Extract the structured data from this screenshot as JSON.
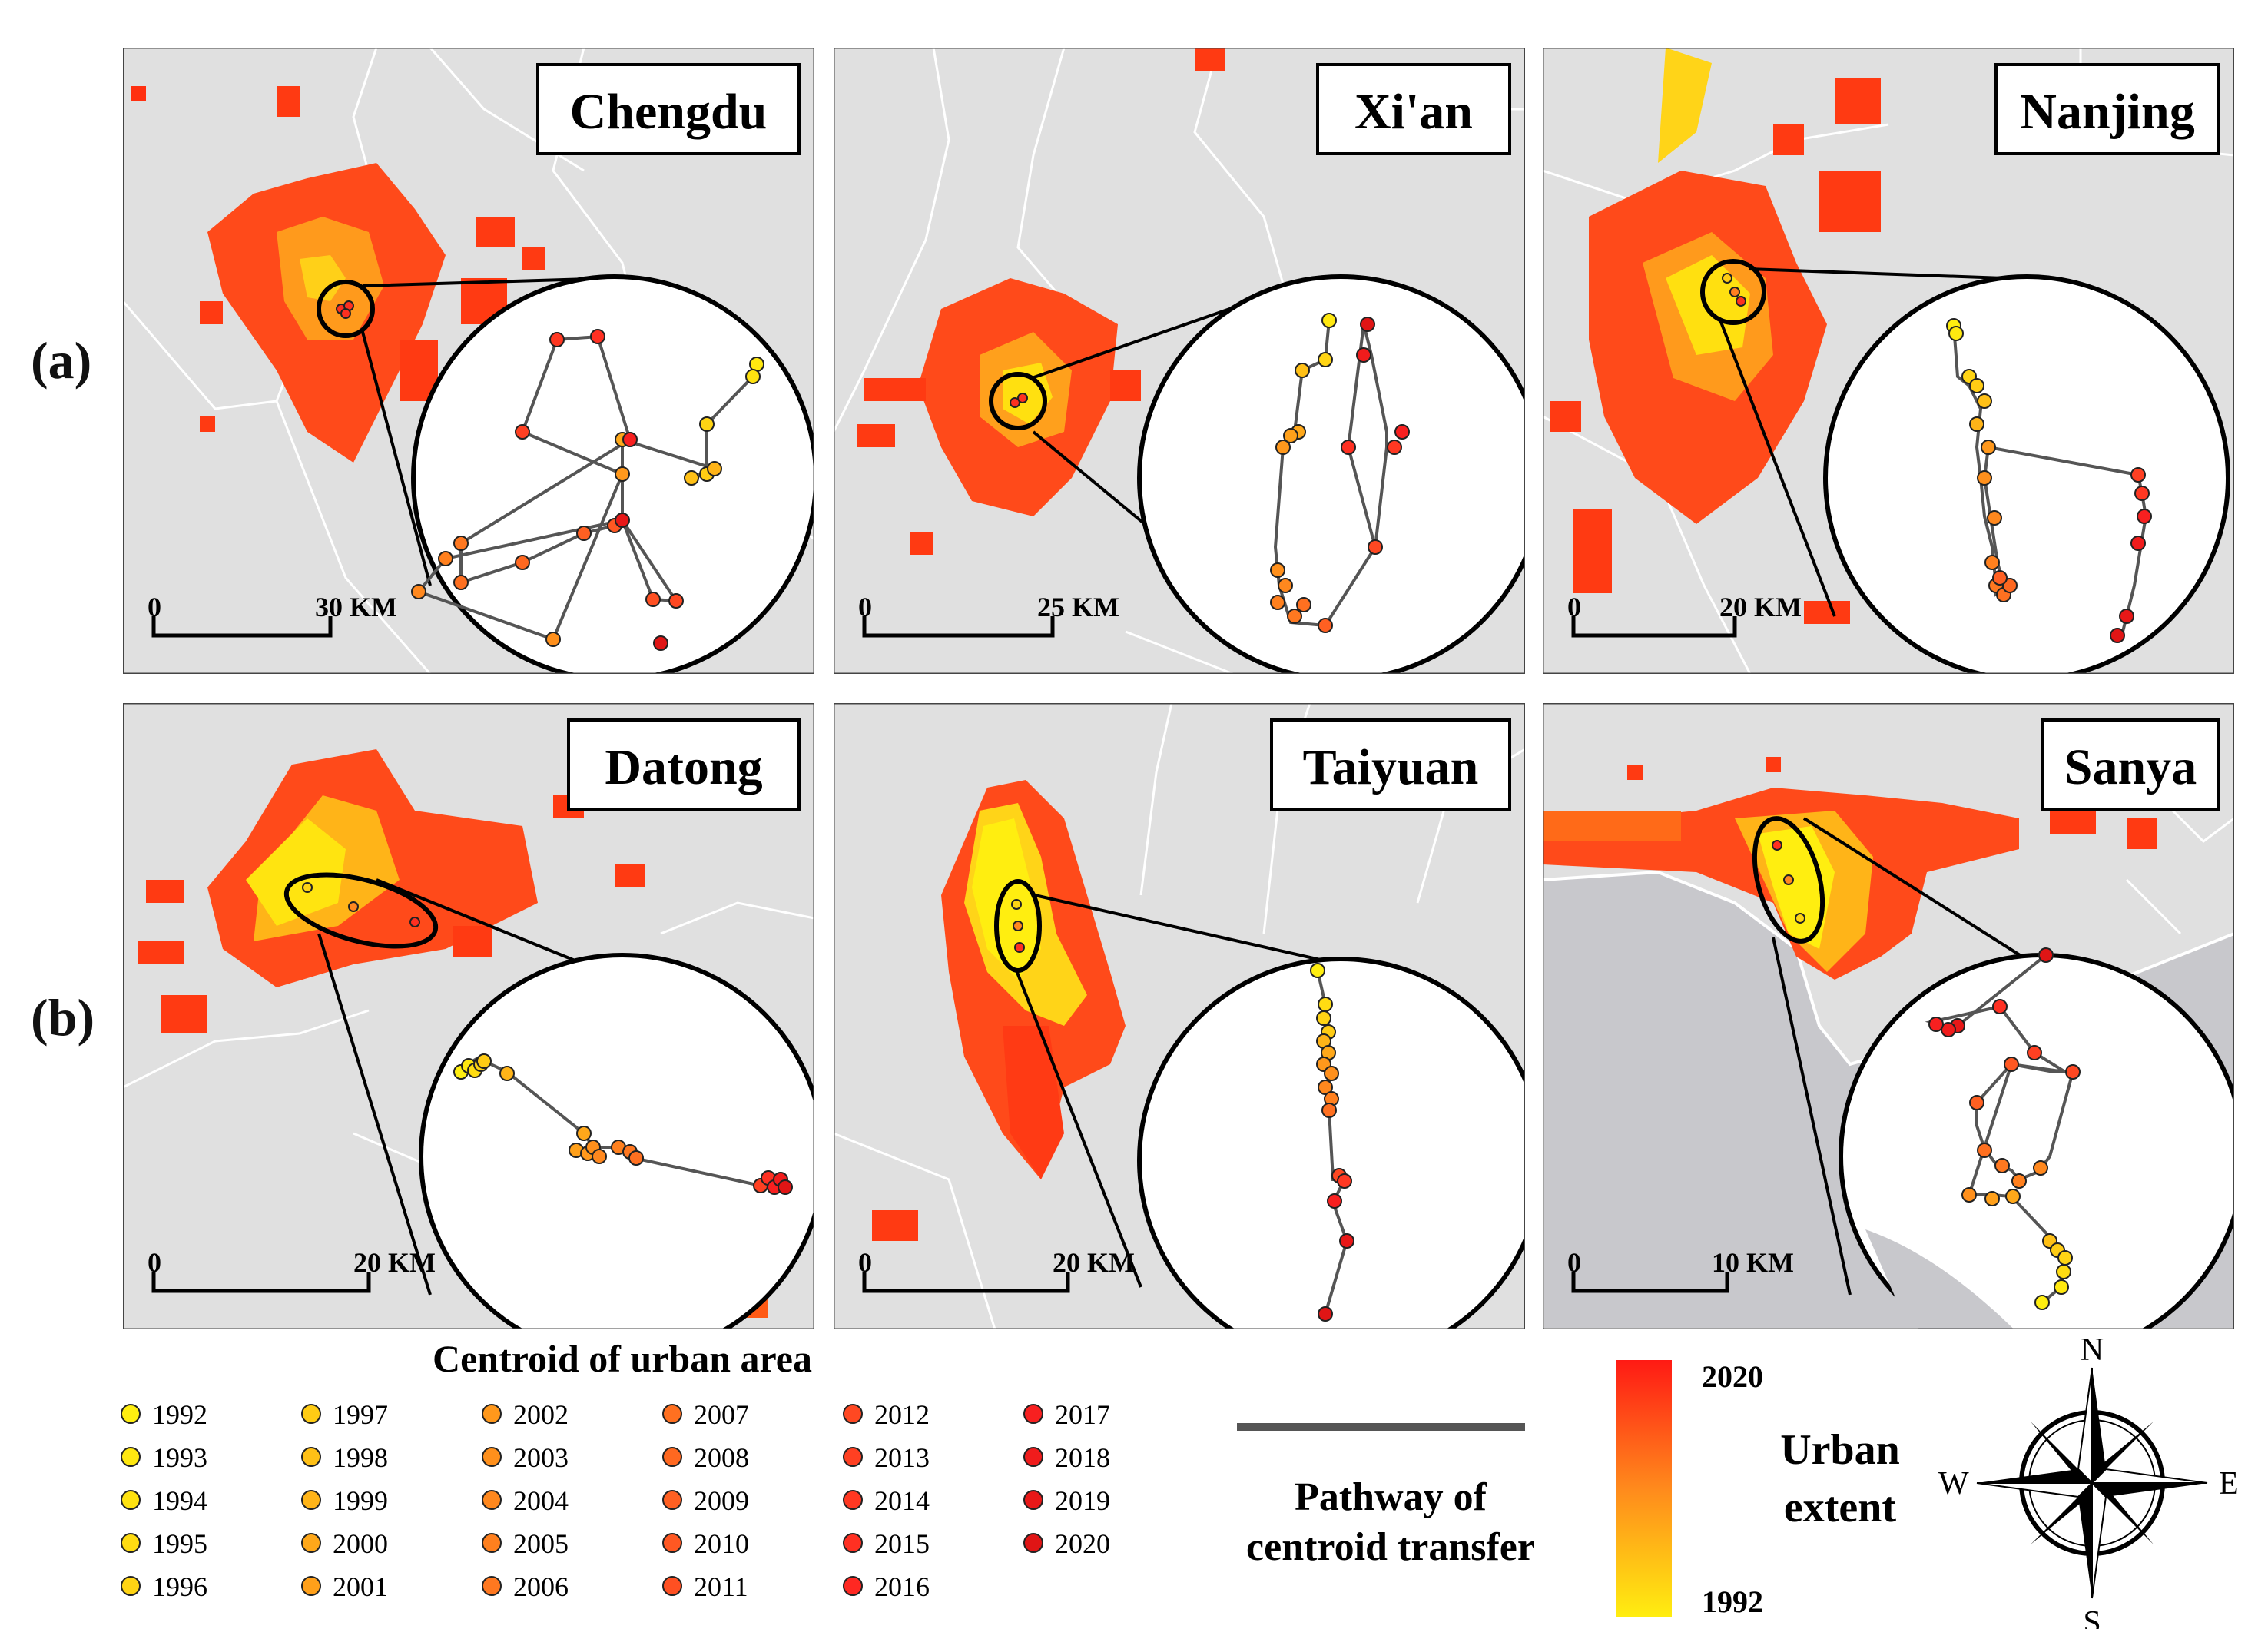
{
  "row_labels": [
    "(a)",
    "(b)"
  ],
  "panels": [
    {
      "city": "Chengdu",
      "scale_zero": "0",
      "scale_end": "30 KM"
    },
    {
      "city": "Xi'an",
      "scale_zero": "0",
      "scale_end": "25 KM"
    },
    {
      "city": "Nanjing",
      "scale_zero": "0",
      "scale_end": "20 KM"
    },
    {
      "city": "Datong",
      "scale_zero": "0",
      "scale_end": "20 KM"
    },
    {
      "city": "Taiyuan",
      "scale_zero": "0",
      "scale_end": "20 KM"
    },
    {
      "city": "Sanya",
      "scale_zero": "0",
      "scale_end": "10 KM"
    }
  ],
  "legend": {
    "centroid_title": "Centroid of urban area",
    "years": [
      "1992",
      "1993",
      "1994",
      "1995",
      "1996",
      "1997",
      "1998",
      "1999",
      "2000",
      "2001",
      "2002",
      "2003",
      "2004",
      "2005",
      "2006",
      "2007",
      "2008",
      "2009",
      "2010",
      "2011",
      "2012",
      "2013",
      "2014",
      "2015",
      "2016",
      "2017",
      "2018",
      "2019",
      "2020"
    ],
    "year_colors": [
      "#ffee10",
      "#ffe810",
      "#ffe210",
      "#ffdc12",
      "#ffd414",
      "#ffcc14",
      "#ffc016",
      "#ffb418",
      "#ffa81a",
      "#ffa01a",
      "#ff981c",
      "#ff901c",
      "#ff881e",
      "#ff801e",
      "#ff7820",
      "#ff7020",
      "#ff6820",
      "#ff6022",
      "#ff5822",
      "#ff5022",
      "#ff4822",
      "#ff4022",
      "#ff3822",
      "#ff3022",
      "#ff2822",
      "#f82020",
      "#f01c1c",
      "#e81818",
      "#e01515"
    ],
    "pathway_line1": "Pathway of",
    "pathway_line2": "centroid transfer",
    "ramp_top": "2020",
    "ramp_bottom": "1992",
    "extent_line1": "Urban",
    "extent_line2": "extent",
    "compass": {
      "n": "N",
      "s": "S",
      "e": "E",
      "w": "W"
    }
  }
}
